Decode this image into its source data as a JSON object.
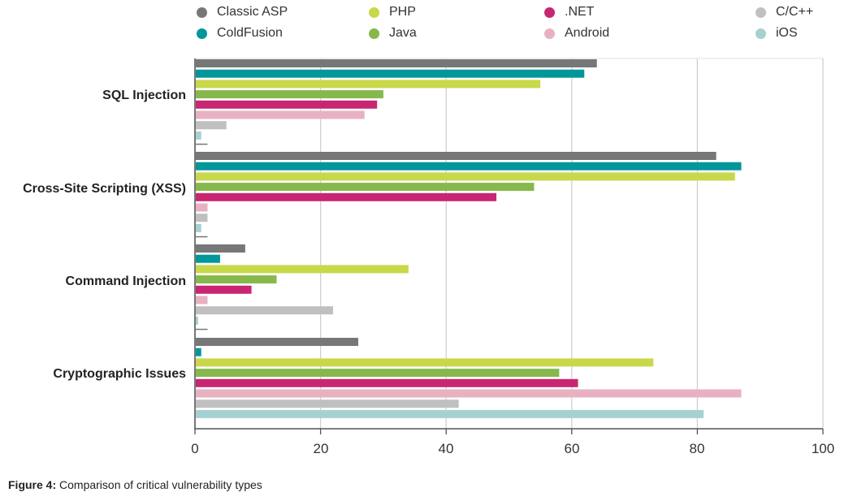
{
  "chart_data": {
    "type": "bar",
    "orientation": "horizontal",
    "title": "",
    "caption_label": "Figure 4:",
    "caption_text": "Comparison of critical vulnerability types",
    "categories": [
      "SQL Injection",
      "Cross-Site Scripting (XSS)",
      "Command Injection",
      "Cryptographic Issues"
    ],
    "xlim": [
      0,
      100
    ],
    "xticks": [
      "0",
      "20",
      "40",
      "60",
      "80",
      "100"
    ],
    "grid": true,
    "legend_position": "top",
    "series": [
      {
        "name": "Classic ASP",
        "color": "#777777",
        "values": [
          64,
          83,
          8,
          26
        ]
      },
      {
        "name": "ColdFusion",
        "color": "#00979a",
        "values": [
          62,
          87,
          4,
          1
        ]
      },
      {
        "name": "PHP",
        "color": "#c8d84a",
        "values": [
          55,
          86,
          34,
          73
        ]
      },
      {
        "name": "Java",
        "color": "#86b84c",
        "values": [
          30,
          54,
          13,
          58
        ]
      },
      {
        "name": ".NET",
        "color": "#c82572",
        "values": [
          29,
          48,
          9,
          61
        ]
      },
      {
        "name": "Android",
        "color": "#e8b1c2",
        "values": [
          27,
          2,
          2,
          87
        ]
      },
      {
        "name": "C/C++",
        "color": "#c0c0c0",
        "values": [
          5,
          2,
          22,
          42
        ]
      },
      {
        "name": "iOS",
        "color": "#a6d1d1",
        "values": [
          1,
          1,
          0.5,
          81
        ]
      }
    ]
  }
}
